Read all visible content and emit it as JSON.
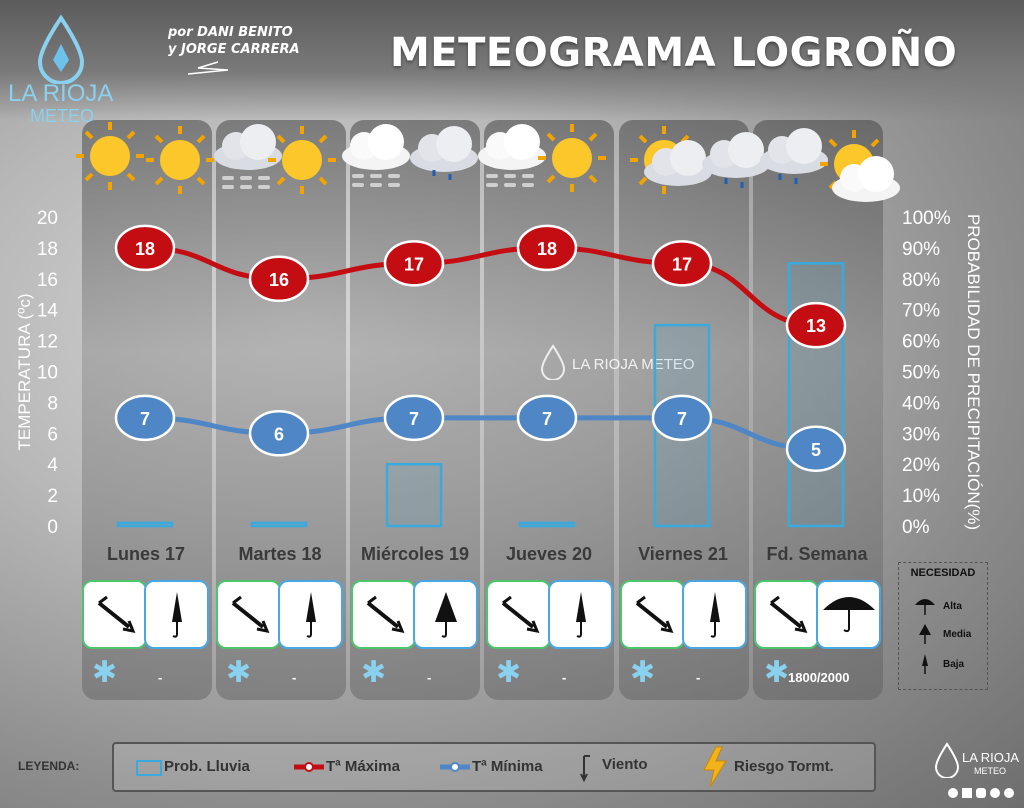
{
  "header": {
    "credit_line1": "por DANI BENITO",
    "credit_line2": "y JORGE CARRERA",
    "title": "METEOGRAMA LOGROÑO",
    "logo_name": "LA RIOJA",
    "logo_sub": "METEO",
    "watermark": "LA RIOJA METEO"
  },
  "colors": {
    "max_temp": "#c40d13",
    "min_temp": "#4f86c6",
    "rain_bar": "#3aa9dd",
    "wind_card": "#4bc66b",
    "umbrella_card": "#4aa7e5",
    "storm": "#f2b21a"
  },
  "chart_data": {
    "type": "line",
    "categories": [
      "Lunes 17",
      "Martes 18",
      "Miércoles 19",
      "Jueves 20",
      "Viernes 21",
      "Fd. Semana"
    ],
    "y_left_label": "TEMPERATURA (ºc)",
    "y_right_label": "PROBABILIDAD DE PRECIPITACIÓN(%)",
    "y_left_range": [
      0,
      20
    ],
    "y_left_ticks": [
      "0",
      "2",
      "4",
      "6",
      "8",
      "10",
      "12",
      "14",
      "16",
      "18",
      "20"
    ],
    "y_right_range": [
      0,
      100
    ],
    "y_right_ticks": [
      "0%",
      "10%",
      "20%",
      "30%",
      "40%",
      "50%",
      "60%",
      "70%",
      "80%",
      "90%",
      "100%"
    ],
    "series": [
      {
        "name": "Tª Máxima",
        "values": [
          18,
          16,
          17,
          18,
          17,
          13
        ]
      },
      {
        "name": "Tª Mínima",
        "values": [
          7,
          6,
          7,
          7,
          7,
          5
        ]
      },
      {
        "name": "Prob. Lluvia",
        "values": [
          1,
          1,
          20,
          1,
          65,
          85
        ],
        "unit": "%"
      }
    ]
  },
  "details": {
    "wind_icons": [
      "wind-arrow-icon",
      "wind-arrow-icon",
      "wind-arrow-icon",
      "wind-arrow-icon",
      "wind-arrow-icon",
      "wind-arrow-icon"
    ],
    "umbrella_level": [
      "Baja",
      "Baja",
      "Media",
      "Baja",
      "Baja",
      "Alta"
    ],
    "snow_info": [
      "-",
      "-",
      "-",
      "-",
      "-",
      "1800/2000"
    ]
  },
  "necesidad": {
    "title": "NECESIDAD",
    "items": [
      "Alta",
      "Media",
      "Baja"
    ]
  },
  "legend": {
    "heading": "LEYENDA:",
    "items": [
      "Prob. Lluvia",
      "Tª Máxima",
      "Tª Mínima",
      "Viento",
      "Riesgo Tormt."
    ]
  }
}
